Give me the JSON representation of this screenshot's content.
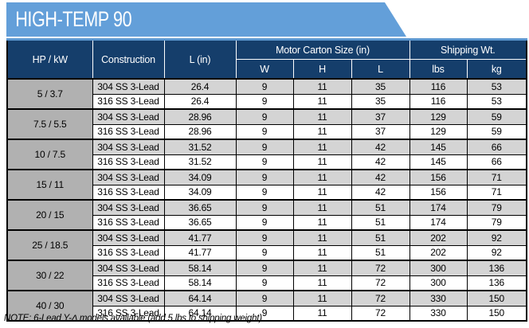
{
  "banner": {
    "title": "HIGH-TEMP 90",
    "background_color": "#639FD9",
    "text_color": "#FFFFFF"
  },
  "colors": {
    "header_navy": "#153E6B",
    "hp_cell_gray": "#B1B1B1",
    "row_304_gray": "#D4D4D4",
    "row_316_white": "#FFFFFF",
    "border_black": "#000000",
    "accent_light_blue": "#5C97D0"
  },
  "table": {
    "header": {
      "hp_kw": "HP / kW",
      "construction": "Construction",
      "l_in": "L (in)",
      "motor_carton_group": "Motor Carton Size (in)",
      "shipping_group": "Shipping Wt.",
      "sub": [
        "W",
        "H",
        "L",
        "lbs",
        "kg"
      ]
    },
    "groups": [
      {
        "hp_kw": "5 / 3.7",
        "rows": [
          {
            "construction": "304 SS 3-Lead",
            "l_in": "26.4",
            "w": "9",
            "h": "11",
            "l": "35",
            "lbs": "116",
            "kg": "53"
          },
          {
            "construction": "316 SS 3-Lead",
            "l_in": "26.4",
            "w": "9",
            "h": "11",
            "l": "35",
            "lbs": "116",
            "kg": "53"
          }
        ]
      },
      {
        "hp_kw": "7.5 / 5.5",
        "rows": [
          {
            "construction": "304 SS 3-Lead",
            "l_in": "28.96",
            "w": "9",
            "h": "11",
            "l": "37",
            "lbs": "129",
            "kg": "59"
          },
          {
            "construction": "316 SS 3-Lead",
            "l_in": "28.96",
            "w": "9",
            "h": "11",
            "l": "37",
            "lbs": "129",
            "kg": "59"
          }
        ]
      },
      {
        "hp_kw": "10 / 7.5",
        "rows": [
          {
            "construction": "304 SS 3-Lead",
            "l_in": "31.52",
            "w": "9",
            "h": "11",
            "l": "42",
            "lbs": "145",
            "kg": "66"
          },
          {
            "construction": "316 SS 3-Lead",
            "l_in": "31.52",
            "w": "9",
            "h": "11",
            "l": "42",
            "lbs": "145",
            "kg": "66"
          }
        ]
      },
      {
        "hp_kw": "15 / 11",
        "rows": [
          {
            "construction": "304 SS 3-Lead",
            "l_in": "34.09",
            "w": "9",
            "h": "11",
            "l": "42",
            "lbs": "156",
            "kg": "71"
          },
          {
            "construction": "316 SS 3-Lead",
            "l_in": "34.09",
            "w": "9",
            "h": "11",
            "l": "42",
            "lbs": "156",
            "kg": "71"
          }
        ]
      },
      {
        "hp_kw": "20 / 15",
        "rows": [
          {
            "construction": "304 SS 3-Lead",
            "l_in": "36.65",
            "w": "9",
            "h": "11",
            "l": "51",
            "lbs": "174",
            "kg": "79"
          },
          {
            "construction": "316 SS 3-Lead",
            "l_in": "36.65",
            "w": "9",
            "h": "11",
            "l": "51",
            "lbs": "174",
            "kg": "79"
          }
        ]
      },
      {
        "hp_kw": "25 / 18.5",
        "rows": [
          {
            "construction": "304 SS 3-Lead",
            "l_in": "41.77",
            "w": "9",
            "h": "11",
            "l": "51",
            "lbs": "202",
            "kg": "92"
          },
          {
            "construction": "316 SS 3-Lead",
            "l_in": "41.77",
            "w": "9",
            "h": "11",
            "l": "51",
            "lbs": "202",
            "kg": "92"
          }
        ]
      },
      {
        "hp_kw": "30 / 22",
        "rows": [
          {
            "construction": "304 SS 3-Lead",
            "l_in": "58.14",
            "w": "9",
            "h": "11",
            "l": "72",
            "lbs": "300",
            "kg": "136"
          },
          {
            "construction": "316 SS 3-Lead",
            "l_in": "58.14",
            "w": "9",
            "h": "11",
            "l": "72",
            "lbs": "300",
            "kg": "136"
          }
        ]
      },
      {
        "hp_kw": "40 / 30",
        "rows": [
          {
            "construction": "304 SS 3-Lead",
            "l_in": "64.14",
            "w": "9",
            "h": "11",
            "l": "72",
            "lbs": "330",
            "kg": "150"
          },
          {
            "construction": "316 SS 3-Lead",
            "l_in": "64.14",
            "w": "9",
            "h": "11",
            "l": "72",
            "lbs": "330",
            "kg": "150"
          }
        ]
      }
    ]
  },
  "note": "NOTE: 6-Lead Y-Δ models available (add 5 lbs to shipping weight)"
}
